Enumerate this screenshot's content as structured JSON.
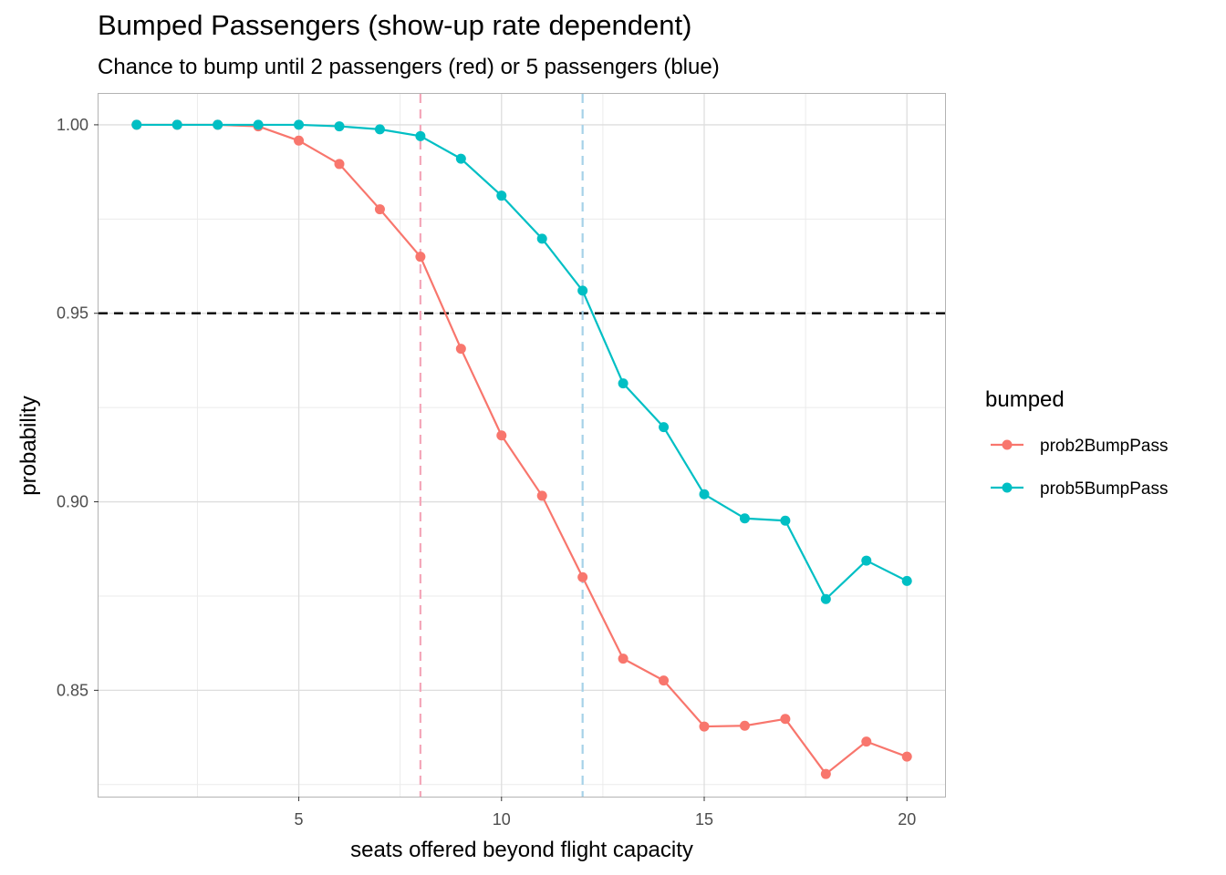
{
  "chart_data": {
    "type": "line",
    "title": "Bumped Passengers (show-up rate dependent)",
    "subtitle": "Chance to bump until 2 passengers (red) or 5 passengers (blue)",
    "xlabel": "seats offered beyond flight capacity",
    "ylabel": "probability",
    "xlim": [
      0.06,
      20.94
    ],
    "ylim": [
      0.8218,
      1.0082
    ],
    "x_ticks": [
      5,
      10,
      15,
      20
    ],
    "x_tick_labels": [
      "5",
      "10",
      "15",
      "20"
    ],
    "y_ticks": [
      0.85,
      0.9,
      0.95,
      1.0
    ],
    "y_tick_labels": [
      "0.85",
      "0.90",
      "0.95",
      "1.00"
    ],
    "grid": true,
    "legend": {
      "title": "bumped",
      "position": "right"
    },
    "x": [
      1,
      2,
      3,
      4,
      5,
      6,
      7,
      8,
      9,
      10,
      11,
      12,
      13,
      14,
      15,
      16,
      17,
      18,
      19,
      20
    ],
    "series": [
      {
        "name": "prob2BumpPass",
        "color": "#F8766D",
        "values": [
          1.0,
          1.0,
          1.0,
          0.9996,
          0.9958,
          0.9896,
          0.9776,
          0.965,
          0.9406,
          0.9176,
          0.9016,
          0.88,
          0.8584,
          0.8526,
          0.8404,
          0.8406,
          0.8424,
          0.8278,
          0.8364,
          0.8324
        ]
      },
      {
        "name": "prob5BumpPass",
        "color": "#00BFC4",
        "values": [
          1.0,
          1.0,
          1.0,
          1.0,
          1.0,
          0.9996,
          0.9988,
          0.997,
          0.991,
          0.9812,
          0.9698,
          0.956,
          0.9314,
          0.9198,
          0.902,
          0.8956,
          0.895,
          0.8742,
          0.8844,
          0.879
        ]
      }
    ],
    "reference_lines": [
      {
        "axis": "y",
        "value": 0.95,
        "color": "#000000",
        "style": "dashed"
      },
      {
        "axis": "x",
        "value": 8,
        "color": "#F4A7B9",
        "style": "dashed"
      },
      {
        "axis": "x",
        "value": 12,
        "color": "#A6D2E8",
        "style": "dashed"
      }
    ]
  }
}
